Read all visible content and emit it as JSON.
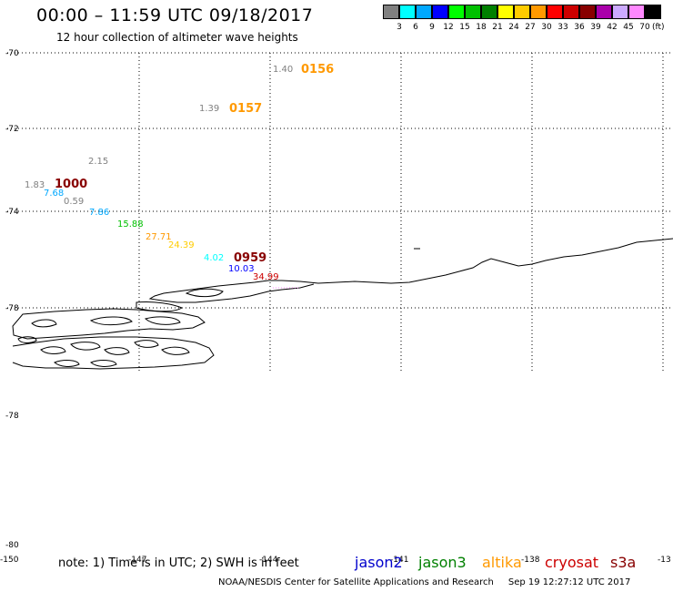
{
  "header": {
    "title": "00:00 – 11:59 UTC 09/18/2017",
    "subtitle": "12 hour collection of altimeter wave heights"
  },
  "scale": {
    "colors": [
      "#808080",
      "#00ffff",
      "#00a8ff",
      "#0000ff",
      "#00ff00",
      "#00c000",
      "#008000",
      "#ffff00",
      "#ffcc00",
      "#ff9900",
      "#ff0000",
      "#cc0000",
      "#880000",
      "#aa00aa",
      "#ccaaff",
      "#ff88ff",
      "#000000"
    ],
    "labels": [
      "3",
      "6",
      "9",
      "12",
      "15",
      "18",
      "21",
      "24",
      "27",
      "30",
      "33",
      "36",
      "39",
      "42",
      "45",
      "70"
    ],
    "unit": "(ft)"
  },
  "axes": {
    "lat_labels": [
      "-70",
      "-72",
      "-74",
      "-78",
      "-78",
      "-80"
    ],
    "lon_labels": [
      "-150",
      "-147",
      "-144",
      "-141",
      "-138",
      "-13"
    ]
  },
  "observations": [
    {
      "text": "1.40",
      "color": "#808080"
    },
    {
      "text": "1.39",
      "color": "#808080"
    },
    {
      "text": "2.15",
      "color": "#808080"
    },
    {
      "text": "1.83",
      "color": "#808080"
    },
    {
      "text": "7.68",
      "color": "#00a8ff"
    },
    {
      "text": "0.59",
      "color": "#808080"
    },
    {
      "text": "7.86",
      "color": "#00a8ff"
    },
    {
      "text": "15.88",
      "color": "#00c000"
    },
    {
      "text": "27.71",
      "color": "#ff9900"
    },
    {
      "text": "24.39",
      "color": "#ffcc00"
    },
    {
      "text": "4.02",
      "color": "#00ffff"
    },
    {
      "text": "10.03",
      "color": "#0000ff"
    },
    {
      "text": "34.99",
      "color": "#cc0000"
    }
  ],
  "passes": [
    {
      "text": "0156",
      "color": "#ff9900"
    },
    {
      "text": "0157",
      "color": "#ff9900"
    },
    {
      "text": "1000",
      "color": "#880000"
    },
    {
      "text": "0959",
      "color": "#880000"
    }
  ],
  "note": "note: 1) Time is in UTC; 2) SWH is in feet",
  "legend": [
    {
      "name": "jason2",
      "color": "#0000cc"
    },
    {
      "name": "jason3",
      "color": "#008000"
    },
    {
      "name": "altika",
      "color": "#ff9900"
    },
    {
      "name": "cryosat",
      "color": "#cc0000"
    },
    {
      "name": "s3a",
      "color": "#880000"
    }
  ],
  "footer": {
    "credit": "NOAA/NESDIS Center for Satellite Applications and Research",
    "timestamp": "Sep 19 12:27:12 UTC 2017"
  }
}
